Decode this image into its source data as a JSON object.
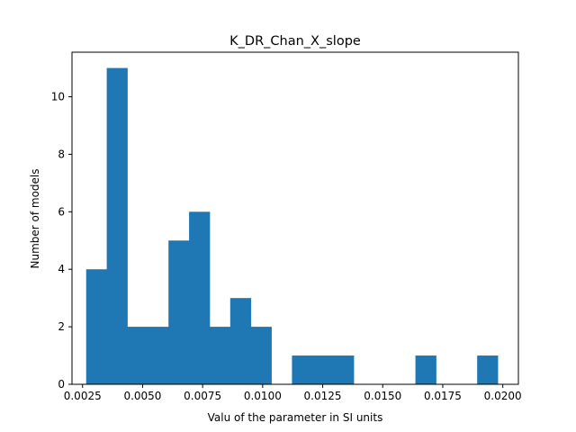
{
  "chart_data": {
    "type": "bar",
    "title": "K_DR_Chan_X_slope",
    "xlabel": "Valu of the parameter in SI units",
    "ylabel": "Number of models",
    "xlim": [
      0.00206,
      0.02065
    ],
    "ylim": [
      0,
      11.55
    ],
    "xticks": [
      0.0025,
      0.005,
      0.0075,
      0.01,
      0.0125,
      0.015,
      0.0175,
      0.02
    ],
    "xtick_labels": [
      "0.0025",
      "0.0050",
      "0.0075",
      "0.0100",
      "0.0125",
      "0.0150",
      "0.0175",
      "0.0200"
    ],
    "yticks": [
      0,
      2,
      4,
      6,
      8,
      10
    ],
    "ytick_labels": [
      "0",
      "2",
      "4",
      "6",
      "8",
      "10"
    ],
    "bin_start": 0.00265,
    "bin_width": 0.000857,
    "counts": [
      4,
      11,
      2,
      2,
      5,
      6,
      2,
      3,
      2,
      0,
      1,
      1,
      1,
      0,
      0,
      0,
      1,
      0,
      0,
      1
    ],
    "bar_color": "#1f77b4",
    "grid": false,
    "legend": "none"
  }
}
